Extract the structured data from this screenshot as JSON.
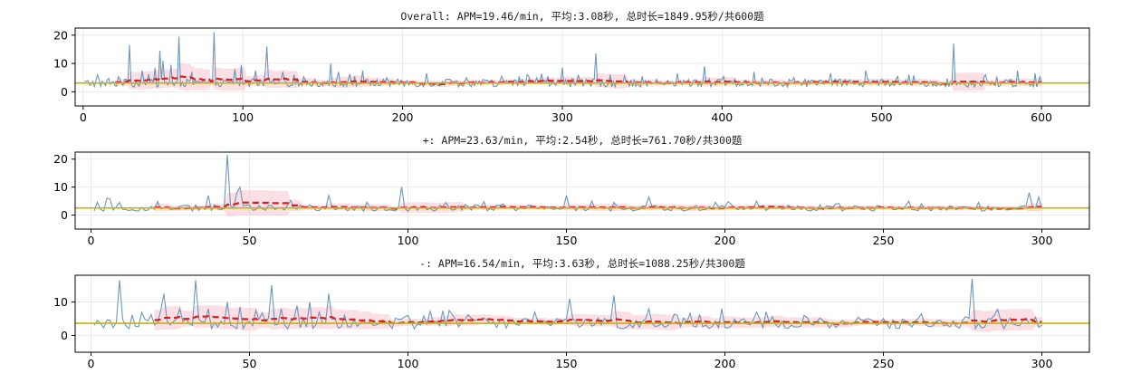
{
  "chart_data": [
    {
      "type": "line",
      "title": "Overall: APM=19.46/min, 平均:3.08秒, 总时长=1849.95秒/共600题",
      "n": 600,
      "mean": 3.08,
      "window": 20,
      "xlim": [
        -5,
        630
      ],
      "ylim": [
        -5,
        22.5
      ],
      "xticks": [
        0,
        100,
        200,
        300,
        400,
        500,
        600
      ],
      "yticks": [
        0,
        10,
        20
      ],
      "grid": true,
      "spikes": [
        [
          29,
          16.5
        ],
        [
          37,
          7.5
        ],
        [
          45,
          8.5
        ],
        [
          48,
          14.5
        ],
        [
          50,
          11
        ],
        [
          55,
          9.5
        ],
        [
          60,
          19.5
        ],
        [
          68,
          7
        ],
        [
          82,
          21
        ],
        [
          95,
          8
        ],
        [
          99,
          9.5
        ],
        [
          108,
          7.5
        ],
        [
          115,
          16
        ],
        [
          125,
          7
        ],
        [
          132,
          6
        ],
        [
          155,
          10
        ],
        [
          160,
          7
        ],
        [
          175,
          7.5
        ],
        [
          190,
          5
        ],
        [
          215,
          6.5
        ],
        [
          240,
          5
        ],
        [
          262,
          5.5
        ],
        [
          278,
          6
        ],
        [
          291,
          5.5
        ],
        [
          300,
          8.5
        ],
        [
          310,
          6
        ],
        [
          321,
          13.5
        ],
        [
          330,
          6
        ],
        [
          350,
          5.5
        ],
        [
          372,
          6.5
        ],
        [
          389,
          9
        ],
        [
          420,
          7
        ],
        [
          445,
          5
        ],
        [
          468,
          6.5
        ],
        [
          490,
          7.5
        ],
        [
          517,
          6
        ],
        [
          545,
          17
        ],
        [
          565,
          6
        ],
        [
          585,
          7.5
        ],
        [
          596,
          6.5
        ]
      ],
      "series": [
        {
          "role": "raw"
        },
        {
          "role": "moving-average"
        },
        {
          "role": "mean"
        }
      ]
    },
    {
      "type": "line",
      "title": "+: APM=23.63/min, 平均:2.54秒, 总时长=761.70秒/共300题",
      "n": 300,
      "mean": 2.54,
      "window": 20,
      "xlim": [
        -5,
        315
      ],
      "ylim": [
        -5,
        22.5
      ],
      "xticks": [
        0,
        50,
        100,
        150,
        200,
        250,
        300
      ],
      "yticks": [
        0,
        10,
        20
      ],
      "grid": true,
      "spikes": [
        [
          5,
          6
        ],
        [
          9,
          4.5
        ],
        [
          30,
          3.5
        ],
        [
          37,
          7
        ],
        [
          43,
          21.5
        ],
        [
          46,
          8
        ],
        [
          47,
          10
        ],
        [
          75,
          7
        ],
        [
          98,
          10
        ],
        [
          112,
          4.5
        ],
        [
          130,
          4
        ],
        [
          150,
          7
        ],
        [
          165,
          4.5
        ],
        [
          176,
          6.5
        ],
        [
          210,
          5
        ],
        [
          235,
          4
        ],
        [
          258,
          5
        ],
        [
          280,
          4.5
        ],
        [
          296,
          8
        ],
        [
          299,
          6.5
        ]
      ],
      "series": [
        {
          "role": "raw"
        },
        {
          "role": "moving-average"
        },
        {
          "role": "mean"
        }
      ]
    },
    {
      "type": "line",
      "title": "-: APM=16.54/min, 平均:3.63秒, 总时长=1088.25秒/共300题",
      "n": 300,
      "mean": 3.63,
      "window": 20,
      "xlim": [
        -5,
        315
      ],
      "ylim": [
        -5,
        18
      ],
      "xticks": [
        0,
        50,
        100,
        150,
        200,
        250,
        300
      ],
      "yticks": [
        0,
        10
      ],
      "grid": true,
      "spikes": [
        [
          9,
          16.5
        ],
        [
          13,
          6
        ],
        [
          22,
          7.5
        ],
        [
          23,
          12.5
        ],
        [
          28,
          8
        ],
        [
          33,
          16.5
        ],
        [
          37,
          8
        ],
        [
          43,
          10
        ],
        [
          47,
          8.5
        ],
        [
          52,
          7.5
        ],
        [
          57,
          15
        ],
        [
          60,
          8
        ],
        [
          65,
          9
        ],
        [
          69,
          10
        ],
        [
          72,
          7
        ],
        [
          75,
          12.5
        ],
        [
          80,
          6
        ],
        [
          100,
          6
        ],
        [
          113,
          7.5
        ],
        [
          140,
          7
        ],
        [
          151,
          11
        ],
        [
          165,
          12
        ],
        [
          176,
          8
        ],
        [
          185,
          6
        ],
        [
          199,
          8
        ],
        [
          210,
          7
        ],
        [
          225,
          6
        ],
        [
          242,
          5.5
        ],
        [
          262,
          6.5
        ],
        [
          278,
          17
        ],
        [
          285,
          6
        ],
        [
          298,
          5.5
        ]
      ],
      "series": [
        {
          "role": "raw"
        },
        {
          "role": "moving-average"
        },
        {
          "role": "mean"
        }
      ]
    }
  ]
}
